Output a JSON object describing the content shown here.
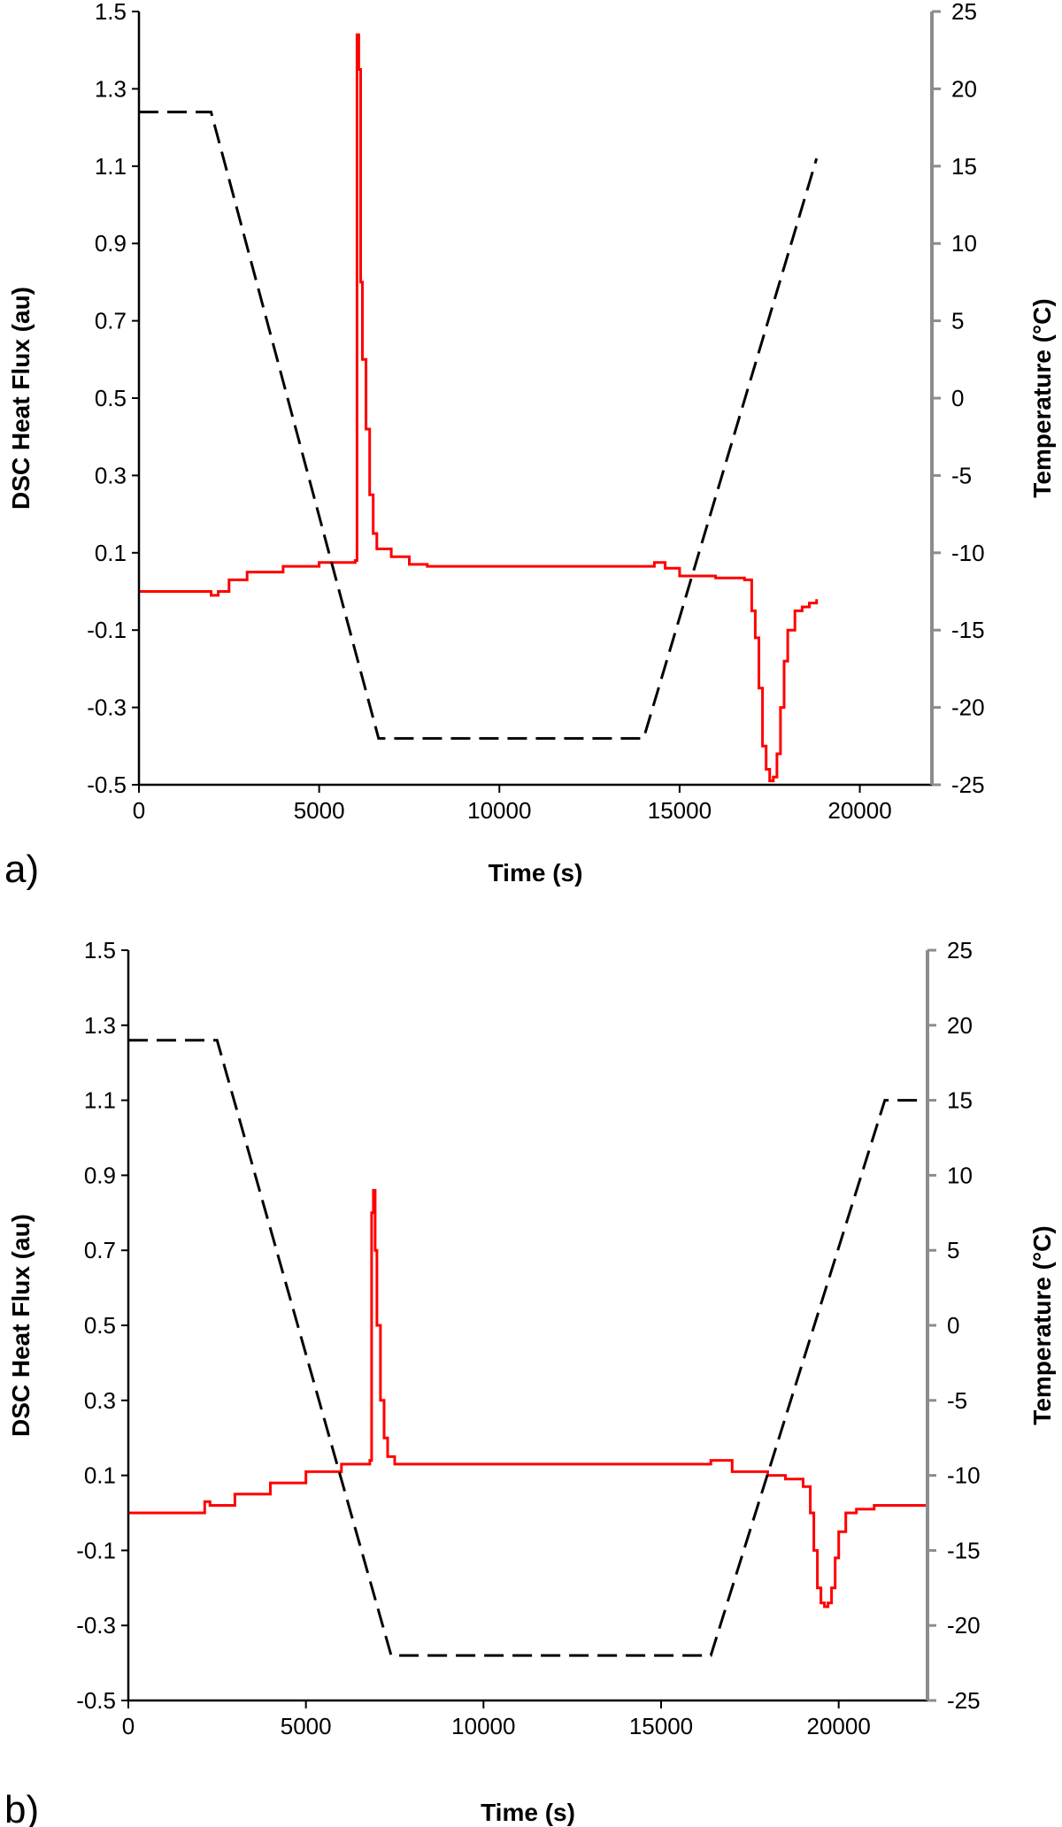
{
  "chart_data": [
    {
      "type": "line",
      "panel_label": "a)",
      "xlabel": "Time (s)",
      "ylabel": "DSC Heat Flux (au)",
      "y2label": "Temperature (°C)",
      "xlim": [
        0,
        22000
      ],
      "ylim": [
        -0.5,
        1.5
      ],
      "y2lim": [
        -25,
        25
      ],
      "xticks": [
        "0",
        "5000",
        "10000",
        "15000",
        "20000"
      ],
      "xtick_values": [
        0,
        5000,
        10000,
        15000,
        20000
      ],
      "yticks": [
        "1.5",
        "1.3",
        "1.1",
        "0.9",
        "0.7",
        "0.5",
        "0.3",
        "0.1",
        "-0.1",
        "-0.3",
        "-0.5"
      ],
      "y2ticks": [
        "25",
        "20",
        "15",
        "10",
        "5",
        "0",
        "-5",
        "-10",
        "-15",
        "-20",
        "-25"
      ],
      "grid": false,
      "colors": {
        "heat_flux": "#ff0000",
        "temperature": "#000000",
        "right_axis": "#8c8c8c"
      },
      "series": [
        {
          "axis": "left",
          "style": "solid",
          "x": [
            0,
            1900,
            2000,
            2200,
            2500,
            3000,
            4000,
            5000,
            6000,
            6050,
            6100,
            6150,
            6200,
            6300,
            6400,
            6500,
            6600,
            7000,
            7500,
            8000,
            9000,
            10000,
            11000,
            12000,
            13000,
            14000,
            14300,
            14600,
            15000,
            16000,
            16800,
            17000,
            17100,
            17200,
            17300,
            17400,
            17500,
            17600,
            17700,
            17800,
            17900,
            18000,
            18200,
            18400,
            18600,
            18800
          ],
          "y": [
            0.0,
            0.0,
            -0.01,
            0.0,
            0.03,
            0.05,
            0.065,
            0.075,
            0.08,
            1.44,
            1.35,
            0.8,
            0.6,
            0.42,
            0.25,
            0.15,
            0.11,
            0.09,
            0.07,
            0.065,
            0.065,
            0.065,
            0.065,
            0.065,
            0.065,
            0.065,
            0.075,
            0.06,
            0.04,
            0.035,
            0.03,
            -0.05,
            -0.12,
            -0.25,
            -0.4,
            -0.46,
            -0.49,
            -0.48,
            -0.42,
            -0.3,
            -0.18,
            -0.1,
            -0.05,
            -0.04,
            -0.03,
            -0.02
          ]
        },
        {
          "axis": "right",
          "style": "dashed",
          "x": [
            0,
            2000,
            6650,
            14000,
            18800
          ],
          "y": [
            18.5,
            18.5,
            -22,
            -22,
            15.5
          ]
        }
      ]
    },
    {
      "type": "line",
      "panel_label": "b)",
      "xlabel": "Time (s)",
      "ylabel": "DSC Heat Flux (au)",
      "y2label": "Temperature (°C)",
      "xlim": [
        0,
        22500
      ],
      "ylim": [
        -0.5,
        1.5
      ],
      "y2lim": [
        -25,
        25
      ],
      "xticks": [
        "0",
        "5000",
        "10000",
        "15000",
        "20000"
      ],
      "xtick_values": [
        0,
        5000,
        10000,
        15000,
        20000
      ],
      "yticks": [
        "1.5",
        "1.3",
        "1.1",
        "0.9",
        "0.7",
        "0.5",
        "0.3",
        "0.1",
        "-0.1",
        "-0.3",
        "-0.5"
      ],
      "y2ticks": [
        "25",
        "20",
        "15",
        "10",
        "5",
        "0",
        "-5",
        "-10",
        "-15",
        "-20",
        "-25"
      ],
      "grid": false,
      "colors": {
        "heat_flux": "#ff0000",
        "temperature": "#000000",
        "right_axis": "#8c8c8c"
      },
      "series": [
        {
          "axis": "left",
          "style": "solid",
          "x": [
            0,
            2000,
            2150,
            2300,
            3000,
            4000,
            5000,
            6000,
            6800,
            6850,
            6900,
            6950,
            7000,
            7100,
            7200,
            7300,
            7500,
            8000,
            10000,
            12000,
            14000,
            16000,
            16400,
            17000,
            18000,
            18500,
            19000,
            19200,
            19300,
            19400,
            19500,
            19600,
            19700,
            19800,
            19900,
            20000,
            20200,
            20500,
            21000,
            22500
          ],
          "y": [
            0.0,
            0.0,
            0.03,
            0.02,
            0.05,
            0.08,
            0.11,
            0.13,
            0.14,
            0.8,
            0.86,
            0.7,
            0.5,
            0.3,
            0.2,
            0.15,
            0.13,
            0.13,
            0.13,
            0.13,
            0.13,
            0.13,
            0.14,
            0.11,
            0.1,
            0.09,
            0.07,
            0.0,
            -0.1,
            -0.2,
            -0.24,
            -0.25,
            -0.24,
            -0.2,
            -0.12,
            -0.05,
            0.0,
            0.01,
            0.02,
            0.02
          ]
        },
        {
          "axis": "right",
          "style": "dashed",
          "x": [
            0,
            2500,
            7400,
            16400,
            21300,
            22500
          ],
          "y": [
            19,
            19,
            -22,
            -22,
            15,
            15
          ]
        }
      ]
    }
  ]
}
